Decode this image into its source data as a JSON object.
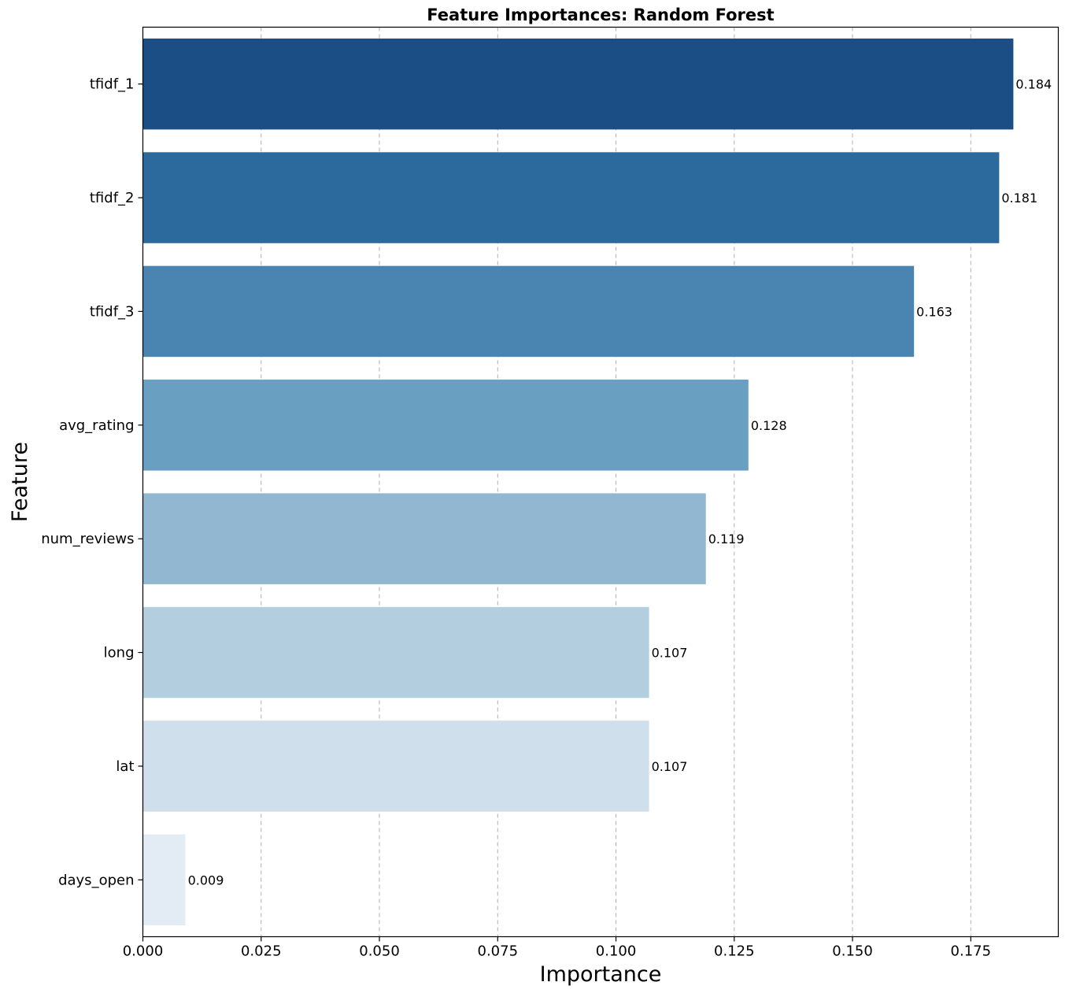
{
  "chart_data": {
    "type": "bar",
    "orientation": "horizontal",
    "title": "Feature Importances: Random Forest",
    "xlabel": "Importance",
    "ylabel": "Feature",
    "categories": [
      "tfidf_1",
      "tfidf_2",
      "tfidf_3",
      "avg_rating",
      "num_reviews",
      "long",
      "lat",
      "days_open"
    ],
    "values": [
      0.184,
      0.181,
      0.163,
      0.128,
      0.119,
      0.107,
      0.107,
      0.009
    ],
    "value_labels": [
      "0.184",
      "0.181",
      "0.163",
      "0.128",
      "0.119",
      "0.107",
      "0.107",
      "0.009"
    ],
    "colors": [
      "#1c4e86",
      "#2c6a9e",
      "#4a84b0",
      "#699fc1",
      "#91b8d0",
      "#b3cedf",
      "#cfdfeb",
      "#e3ecf5"
    ],
    "xlim": [
      0,
      0.1935
    ],
    "xticks": [
      0.0,
      0.025,
      0.05,
      0.075,
      0.1,
      0.125,
      0.15,
      0.175
    ],
    "xtick_labels": [
      "0.000",
      "0.025",
      "0.050",
      "0.075",
      "0.100",
      "0.125",
      "0.150",
      "0.175"
    ],
    "grid": "x-dashed",
    "legend": "none"
  }
}
